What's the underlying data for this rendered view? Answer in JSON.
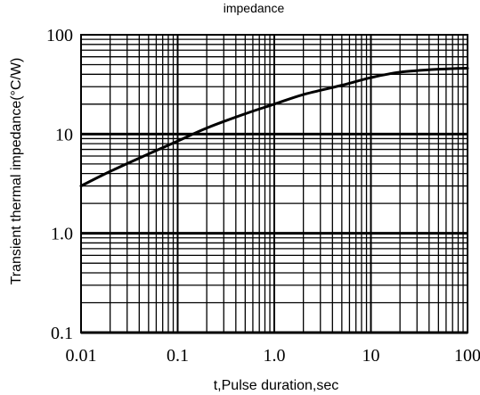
{
  "chart_data": {
    "type": "line",
    "title": "impedance",
    "xlabel": "t,Pulse duration,sec",
    "ylabel": "Transient thermal impedance(°C/W)",
    "x_scale": "log",
    "y_scale": "log",
    "xlim": [
      0.01,
      100
    ],
    "ylim": [
      0.1,
      100
    ],
    "x_ticks": [
      {
        "value": 0.01,
        "label": "0.01"
      },
      {
        "value": 0.1,
        "label": "0.1"
      },
      {
        "value": 1,
        "label": "1.0"
      },
      {
        "value": 10,
        "label": "10"
      },
      {
        "value": 100,
        "label": "100"
      }
    ],
    "y_ticks": [
      {
        "value": 0.1,
        "label": "0.1"
      },
      {
        "value": 1,
        "label": "1.0"
      },
      {
        "value": 10,
        "label": "10"
      },
      {
        "value": 100,
        "label": "100"
      }
    ],
    "grid": true,
    "series": [
      {
        "x": [
          0.01,
          0.02,
          0.05,
          0.1,
          0.2,
          0.5,
          1,
          2,
          5,
          10,
          20,
          50,
          100
        ],
        "y": [
          3.0,
          4.2,
          6.3,
          8.5,
          11.5,
          16,
          20,
          25,
          31,
          37,
          42,
          45,
          46
        ]
      }
    ]
  }
}
